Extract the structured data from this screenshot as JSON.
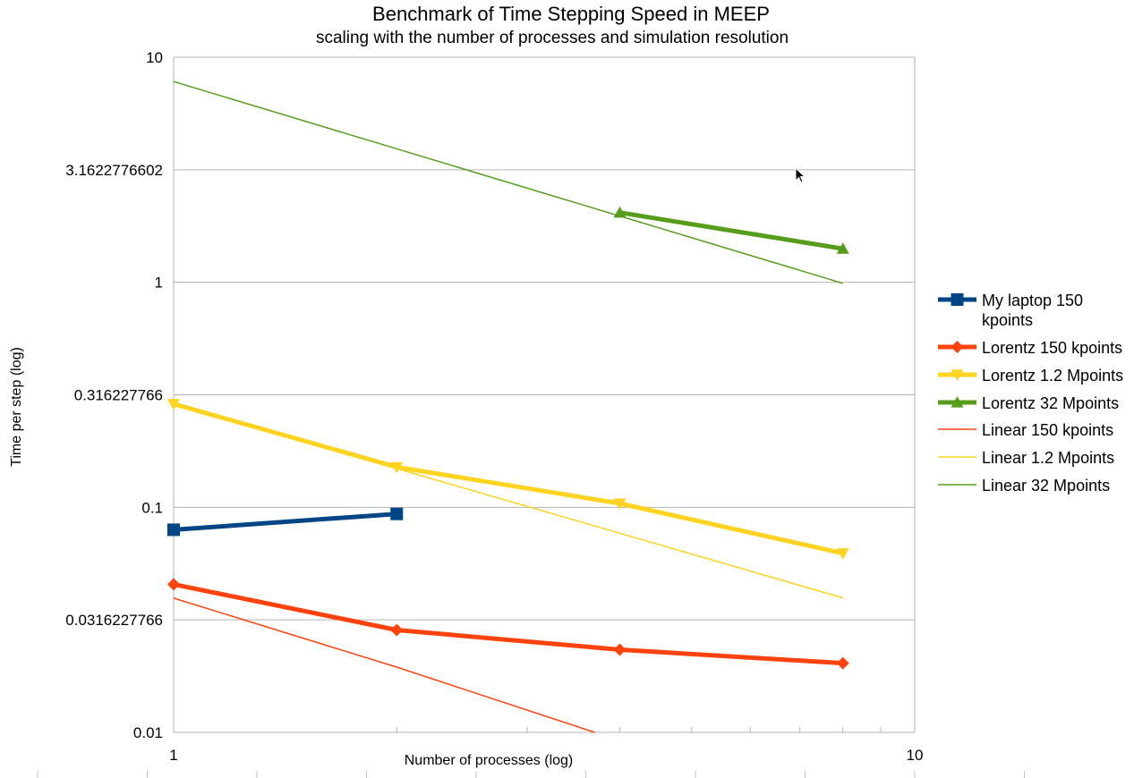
{
  "chart_data": {
    "type": "line",
    "title": "Benchmark of Time Stepping Speed in MEEP",
    "subtitle": "scaling with the number of processes and simulation resolution",
    "xlabel": "Number of processes (log)",
    "ylabel": "Time per step (log)",
    "x_scale": "log",
    "y_scale": "log",
    "xlim": [
      1,
      10
    ],
    "ylim": [
      0.01,
      10
    ],
    "x_ticks": [
      "1",
      "10"
    ],
    "y_ticks": [
      "0.01",
      "0.0316227766",
      "0.1",
      "0.316227766",
      "1",
      "3.1622776602",
      "10"
    ],
    "y_tick_values": [
      0.01,
      0.0316227766,
      0.1,
      0.316227766,
      1,
      3.1622776602,
      10
    ],
    "grid": "horizontal",
    "legend_position": "right",
    "series": [
      {
        "name": "My laptop 150 kpoints",
        "name_lines": [
          "My laptop 150",
          "kpoints"
        ],
        "color": "#004586",
        "marker": "square",
        "style": "thick",
        "x": [
          1,
          2
        ],
        "y": [
          0.0795,
          0.0935
        ]
      },
      {
        "name": "Lorentz 150 kpoints",
        "name_lines": [
          "Lorentz 150 kpoints"
        ],
        "color": "#ff420e",
        "marker": "diamond",
        "style": "thick",
        "x": [
          1,
          2,
          4,
          8
        ],
        "y": [
          0.0455,
          0.0285,
          0.0233,
          0.0203
        ]
      },
      {
        "name": "Lorentz 1.2 Mpoints",
        "name_lines": [
          "Lorentz 1.2 Mpoints"
        ],
        "color": "#ffd320",
        "marker": "triangle-down",
        "style": "thick",
        "x": [
          1,
          2,
          4,
          8
        ],
        "y": [
          0.288,
          0.151,
          0.104,
          0.0625
        ]
      },
      {
        "name": "Lorentz 32 Mpoints",
        "name_lines": [
          "Lorentz 32 Mpoints"
        ],
        "color": "#579d1c",
        "marker": "triangle-up",
        "style": "thick",
        "x": [
          4,
          8
        ],
        "y": [
          2.04,
          1.41
        ]
      },
      {
        "name": "Linear 150 kpoints",
        "name_lines": [
          "Linear 150 kpoints"
        ],
        "color": "#ff420e",
        "marker": "none",
        "style": "thin",
        "x": [
          1,
          2,
          3.7
        ],
        "y": [
          0.0395,
          0.0195,
          0.01
        ]
      },
      {
        "name": "Linear 1.2 Mpoints",
        "name_lines": [
          "Linear 1.2 Mpoints"
        ],
        "color": "#ffd320",
        "marker": "none",
        "style": "thin",
        "x": [
          1,
          8
        ],
        "y": [
          0.288,
          0.0396
        ]
      },
      {
        "name": "Linear 32 Mpoints",
        "name_lines": [
          "Linear 32 Mpoints"
        ],
        "color": "#579d1c",
        "marker": "none",
        "style": "thin",
        "x": [
          1,
          8
        ],
        "y": [
          7.8,
          0.99
        ]
      }
    ]
  }
}
